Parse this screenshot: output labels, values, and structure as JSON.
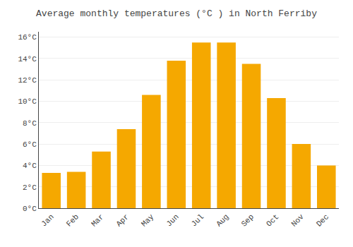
{
  "chart_data": {
    "type": "bar",
    "title": "Average monthly temperatures (°C ) in North Ferriby",
    "categories": [
      "Jan",
      "Feb",
      "Mar",
      "Apr",
      "May",
      "Jun",
      "Jul",
      "Aug",
      "Sep",
      "Oct",
      "Nov",
      "Dec"
    ],
    "values": [
      3.3,
      3.4,
      5.3,
      7.4,
      10.6,
      13.8,
      15.5,
      15.5,
      13.5,
      10.3,
      6.0,
      4.0
    ],
    "color": "#F5A800",
    "ylim": [
      0,
      16.5
    ],
    "yticks": [
      {
        "value": 0,
        "label": "0°C"
      },
      {
        "value": 2,
        "label": "2°C"
      },
      {
        "value": 4,
        "label": "4°C"
      },
      {
        "value": 6,
        "label": "6°C"
      },
      {
        "value": 8,
        "label": "8°C"
      },
      {
        "value": 10,
        "label": "10°C"
      },
      {
        "value": 12,
        "label": "12°C"
      },
      {
        "value": 14,
        "label": "14°C"
      },
      {
        "value": 16,
        "label": "16°C"
      }
    ],
    "grid": true
  }
}
